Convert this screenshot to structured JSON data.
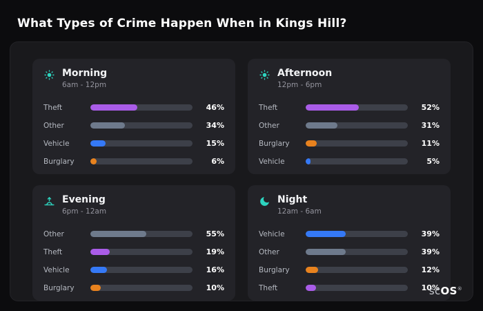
{
  "page": {
    "title": "What Types of Crime Happen When in Kings Hill?"
  },
  "brand": {
    "prefix": "sc",
    "suffix": "OS",
    "registered": "®"
  },
  "colors": {
    "icon_accent": "#2dd4bf",
    "track": "#3d4049",
    "theft": "#a95ce8",
    "other": "#6e7a8c",
    "vehicle": "#3579f6",
    "burglary": "#e8821e",
    "page_bg": "#0c0c0e",
    "panel_bg": "#19191c",
    "card_bg": "#232328"
  },
  "chart_data": [
    {
      "type": "bar",
      "title": "Morning",
      "subtitle": "6am - 12pm",
      "icon": "sun-icon",
      "categories": [
        "Theft",
        "Other",
        "Vehicle",
        "Burglary"
      ],
      "values": [
        46,
        34,
        15,
        6
      ],
      "labels": [
        "46%",
        "34%",
        "15%",
        "6%"
      ],
      "colors": [
        "#a95ce8",
        "#6e7a8c",
        "#3579f6",
        "#e8821e"
      ],
      "xlim": [
        0,
        100
      ]
    },
    {
      "type": "bar",
      "title": "Afternoon",
      "subtitle": "12pm - 6pm",
      "icon": "sun-icon",
      "categories": [
        "Theft",
        "Other",
        "Burglary",
        "Vehicle"
      ],
      "values": [
        52,
        31,
        11,
        5
      ],
      "labels": [
        "52%",
        "31%",
        "11%",
        "5%"
      ],
      "colors": [
        "#a95ce8",
        "#6e7a8c",
        "#e8821e",
        "#3579f6"
      ],
      "xlim": [
        0,
        100
      ]
    },
    {
      "type": "bar",
      "title": "Evening",
      "subtitle": "6pm - 12am",
      "icon": "sunrise-icon",
      "categories": [
        "Other",
        "Theft",
        "Vehicle",
        "Burglary"
      ],
      "values": [
        55,
        19,
        16,
        10
      ],
      "labels": [
        "55%",
        "19%",
        "16%",
        "10%"
      ],
      "colors": [
        "#6e7a8c",
        "#a95ce8",
        "#3579f6",
        "#e8821e"
      ],
      "xlim": [
        0,
        100
      ]
    },
    {
      "type": "bar",
      "title": "Night",
      "subtitle": "12am - 6am",
      "icon": "moon-icon",
      "categories": [
        "Vehicle",
        "Other",
        "Burglary",
        "Theft"
      ],
      "values": [
        39,
        39,
        12,
        10
      ],
      "labels": [
        "39%",
        "39%",
        "12%",
        "10%"
      ],
      "colors": [
        "#3579f6",
        "#6e7a8c",
        "#e8821e",
        "#a95ce8"
      ],
      "xlim": [
        0,
        100
      ]
    }
  ]
}
